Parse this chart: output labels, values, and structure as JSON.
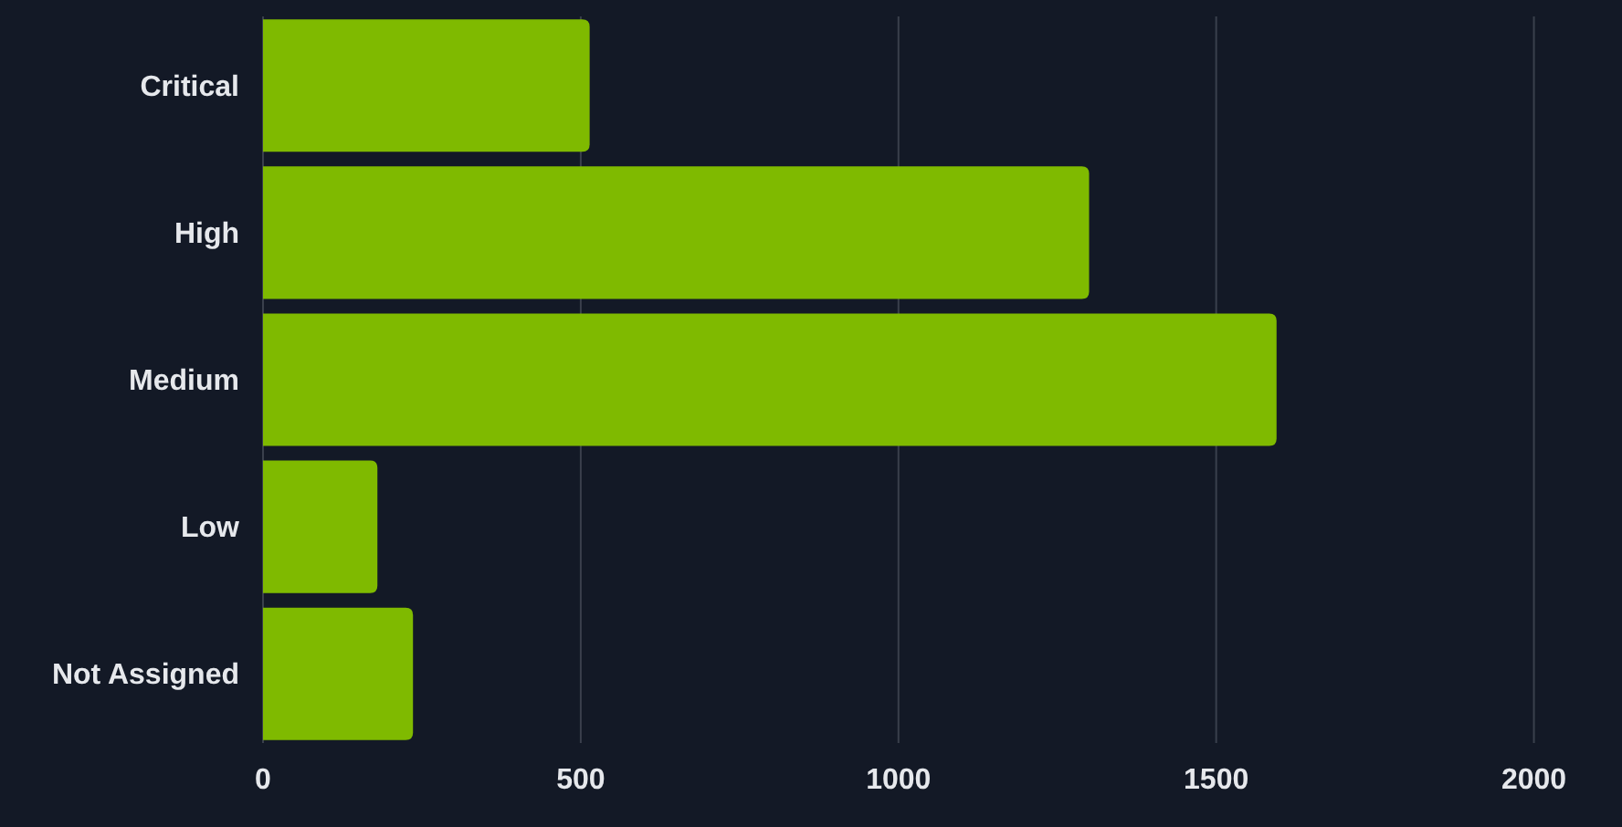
{
  "chart_data": {
    "type": "bar",
    "orientation": "horizontal",
    "categories": [
      "Critical",
      "High",
      "Medium",
      "Low",
      "Not Assigned"
    ],
    "values": [
      514,
      1300,
      1595,
      180,
      236
    ],
    "color": "#7fba00",
    "xlim": [
      0,
      2130
    ],
    "xticks": [
      0,
      500,
      1000,
      1500,
      2000
    ],
    "grid": "x"
  }
}
